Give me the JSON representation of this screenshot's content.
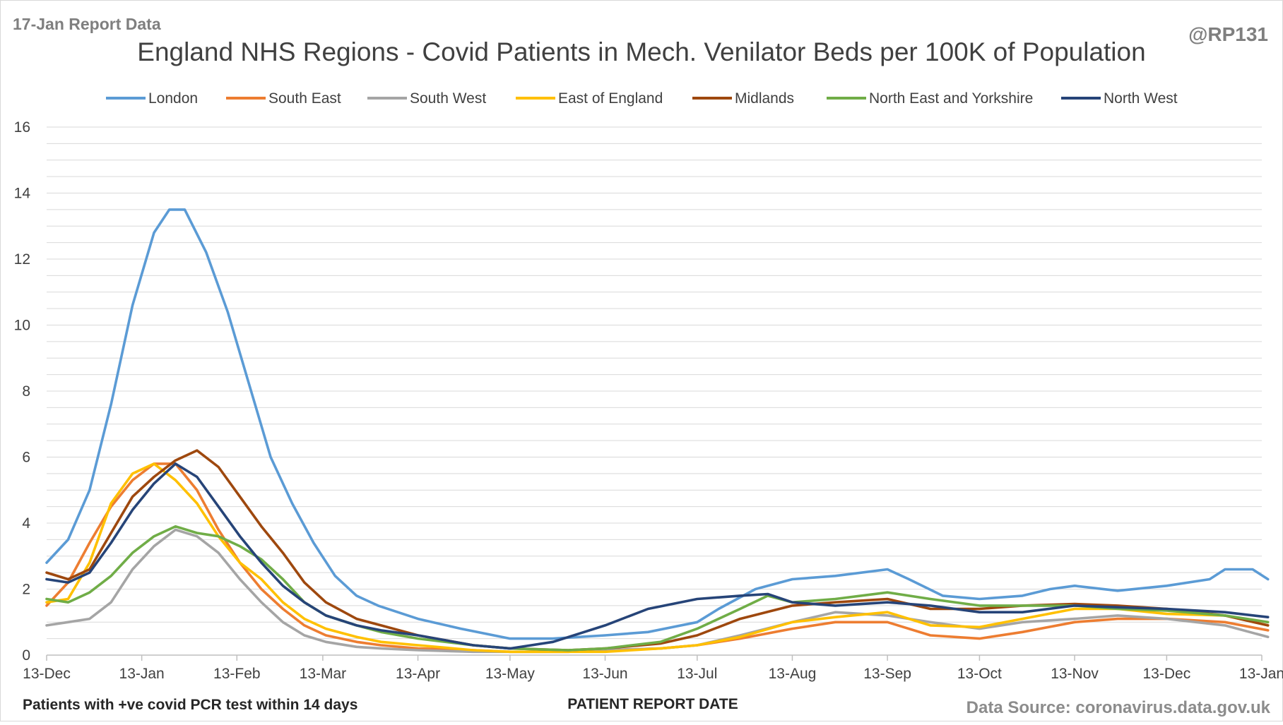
{
  "header": {
    "report_label": "17-Jan Report Data",
    "handle": "@RP131"
  },
  "footer": {
    "note": "Patients with +ve covid PCR test within 14 days",
    "source": "Data Source: coronavirus.data.gov.uk"
  },
  "colors": {
    "London": "#5b9bd5",
    "South East": "#ed7d31",
    "South West": "#a5a5a5",
    "East of England": "#ffc000",
    "Midlands": "#9e480e",
    "North East and Yorkshire": "#70ad47",
    "North West": "#264478"
  },
  "chart_data": {
    "type": "line",
    "title": "England NHS Regions - Covid Patients in Mech. Venilator Beds per 100K of Population",
    "xlabel": "PATIENT REPORT DATE",
    "ylabel": "",
    "ylim": [
      0,
      16
    ],
    "yticks": [
      0,
      2,
      4,
      6,
      8,
      10,
      12,
      14,
      16
    ],
    "x_tick_labels": [
      "13-Dec",
      "13-Jan",
      "13-Feb",
      "13-Mar",
      "13-Apr",
      "13-May",
      "13-Jun",
      "13-Jul",
      "13-Aug",
      "13-Sep",
      "13-Oct",
      "13-Nov",
      "13-Dec",
      "13-Jan"
    ],
    "x_ticks": [
      "2020-12-13",
      "2021-01-13",
      "2021-02-13",
      "2021-03-13",
      "2021-04-13",
      "2021-05-13",
      "2021-06-13",
      "2021-07-13",
      "2021-08-13",
      "2021-09-13",
      "2021-10-13",
      "2021-11-13",
      "2021-12-13",
      "2022-01-13"
    ],
    "xlim": [
      "2020-12-13",
      "2022-01-13"
    ],
    "grid": true,
    "legend_position": "top",
    "series": [
      {
        "name": "London",
        "x": [
          "2020-12-13",
          "2020-12-20",
          "2020-12-27",
          "2021-01-03",
          "2021-01-10",
          "2021-01-17",
          "2021-01-22",
          "2021-01-27",
          "2021-02-03",
          "2021-02-10",
          "2021-02-17",
          "2021-02-24",
          "2021-03-03",
          "2021-03-10",
          "2021-03-17",
          "2021-03-24",
          "2021-03-31",
          "2021-04-13",
          "2021-04-27",
          "2021-05-13",
          "2021-05-27",
          "2021-06-13",
          "2021-06-27",
          "2021-07-13",
          "2021-07-20",
          "2021-08-01",
          "2021-08-13",
          "2021-08-27",
          "2021-09-13",
          "2021-09-20",
          "2021-10-01",
          "2021-10-13",
          "2021-10-27",
          "2021-11-05",
          "2021-11-13",
          "2021-11-27",
          "2021-12-13",
          "2021-12-27",
          "2022-01-01",
          "2022-01-10",
          "2022-01-15"
        ],
        "values": [
          2.8,
          3.5,
          5.0,
          7.6,
          10.6,
          12.8,
          13.5,
          13.5,
          12.2,
          10.4,
          8.2,
          6.0,
          4.6,
          3.4,
          2.4,
          1.8,
          1.5,
          1.1,
          0.8,
          0.5,
          0.5,
          0.6,
          0.7,
          1.0,
          1.4,
          2.0,
          2.3,
          2.4,
          2.6,
          2.3,
          1.8,
          1.7,
          1.8,
          2.0,
          2.1,
          1.95,
          2.1,
          2.3,
          2.6,
          2.6,
          2.3
        ]
      },
      {
        "name": "South East",
        "x": [
          "2020-12-13",
          "2020-12-20",
          "2020-12-27",
          "2021-01-03",
          "2021-01-10",
          "2021-01-17",
          "2021-01-24",
          "2021-01-31",
          "2021-02-07",
          "2021-02-14",
          "2021-02-21",
          "2021-02-28",
          "2021-03-07",
          "2021-03-14",
          "2021-03-24",
          "2021-04-01",
          "2021-04-13",
          "2021-05-01",
          "2021-05-13",
          "2021-06-01",
          "2021-06-13",
          "2021-07-01",
          "2021-07-13",
          "2021-07-27",
          "2021-08-13",
          "2021-08-27",
          "2021-09-13",
          "2021-09-27",
          "2021-10-13",
          "2021-10-27",
          "2021-11-13",
          "2021-11-27",
          "2021-12-13",
          "2022-01-01",
          "2022-01-15"
        ],
        "values": [
          1.5,
          2.2,
          3.4,
          4.5,
          5.3,
          5.8,
          5.8,
          5.0,
          3.8,
          2.8,
          2.0,
          1.4,
          0.9,
          0.6,
          0.4,
          0.3,
          0.2,
          0.15,
          0.1,
          0.1,
          0.15,
          0.2,
          0.3,
          0.5,
          0.8,
          1.0,
          1.0,
          0.6,
          0.5,
          0.7,
          1.0,
          1.1,
          1.1,
          1.0,
          0.75
        ]
      },
      {
        "name": "South West",
        "x": [
          "2020-12-13",
          "2020-12-20",
          "2020-12-27",
          "2021-01-03",
          "2021-01-10",
          "2021-01-17",
          "2021-01-24",
          "2021-01-31",
          "2021-02-07",
          "2021-02-14",
          "2021-02-21",
          "2021-02-28",
          "2021-03-07",
          "2021-03-14",
          "2021-03-24",
          "2021-04-01",
          "2021-04-13",
          "2021-05-01",
          "2021-05-13",
          "2021-06-01",
          "2021-06-13",
          "2021-07-01",
          "2021-07-13",
          "2021-07-27",
          "2021-08-13",
          "2021-08-27",
          "2021-09-13",
          "2021-09-27",
          "2021-10-13",
          "2021-10-27",
          "2021-11-13",
          "2021-11-27",
          "2021-12-13",
          "2022-01-01",
          "2022-01-15"
        ],
        "values": [
          0.9,
          1.0,
          1.1,
          1.6,
          2.6,
          3.3,
          3.8,
          3.6,
          3.1,
          2.3,
          1.6,
          1.0,
          0.6,
          0.4,
          0.25,
          0.2,
          0.15,
          0.1,
          0.1,
          0.1,
          0.15,
          0.2,
          0.3,
          0.6,
          1.0,
          1.3,
          1.2,
          1.0,
          0.8,
          1.0,
          1.1,
          1.2,
          1.1,
          0.9,
          0.55
        ]
      },
      {
        "name": "East of England",
        "x": [
          "2020-12-13",
          "2020-12-20",
          "2020-12-27",
          "2021-01-03",
          "2021-01-10",
          "2021-01-17",
          "2021-01-24",
          "2021-01-31",
          "2021-02-07",
          "2021-02-14",
          "2021-02-21",
          "2021-02-28",
          "2021-03-07",
          "2021-03-14",
          "2021-03-24",
          "2021-04-01",
          "2021-04-13",
          "2021-05-01",
          "2021-05-13",
          "2021-06-01",
          "2021-06-13",
          "2021-07-01",
          "2021-07-13",
          "2021-07-27",
          "2021-08-13",
          "2021-08-27",
          "2021-09-13",
          "2021-09-27",
          "2021-10-13",
          "2021-10-27",
          "2021-11-13",
          "2021-11-27",
          "2021-12-13",
          "2022-01-01",
          "2022-01-15"
        ],
        "values": [
          1.6,
          1.7,
          2.8,
          4.6,
          5.5,
          5.8,
          5.3,
          4.6,
          3.6,
          2.8,
          2.3,
          1.6,
          1.1,
          0.8,
          0.55,
          0.4,
          0.3,
          0.15,
          0.1,
          0.1,
          0.1,
          0.2,
          0.3,
          0.55,
          1.0,
          1.15,
          1.3,
          0.9,
          0.85,
          1.1,
          1.4,
          1.4,
          1.25,
          1.2,
          0.9
        ]
      },
      {
        "name": "Midlands",
        "x": [
          "2020-12-13",
          "2020-12-20",
          "2020-12-27",
          "2021-01-03",
          "2021-01-10",
          "2021-01-17",
          "2021-01-24",
          "2021-01-31",
          "2021-02-07",
          "2021-02-14",
          "2021-02-21",
          "2021-02-28",
          "2021-03-07",
          "2021-03-14",
          "2021-03-24",
          "2021-04-01",
          "2021-04-13",
          "2021-05-01",
          "2021-05-13",
          "2021-06-01",
          "2021-06-13",
          "2021-07-01",
          "2021-07-13",
          "2021-07-27",
          "2021-08-13",
          "2021-08-27",
          "2021-09-13",
          "2021-09-27",
          "2021-10-13",
          "2021-10-27",
          "2021-11-13",
          "2021-11-27",
          "2021-12-13",
          "2022-01-01",
          "2022-01-15"
        ],
        "values": [
          2.5,
          2.3,
          2.6,
          3.7,
          4.8,
          5.4,
          5.9,
          6.2,
          5.7,
          4.8,
          3.9,
          3.1,
          2.2,
          1.6,
          1.1,
          0.9,
          0.6,
          0.3,
          0.2,
          0.15,
          0.2,
          0.35,
          0.6,
          1.1,
          1.5,
          1.6,
          1.7,
          1.4,
          1.4,
          1.5,
          1.55,
          1.5,
          1.4,
          1.2,
          0.9
        ]
      },
      {
        "name": "North East and Yorkshire",
        "x": [
          "2020-12-13",
          "2020-12-20",
          "2020-12-27",
          "2021-01-03",
          "2021-01-10",
          "2021-01-17",
          "2021-01-24",
          "2021-01-31",
          "2021-02-07",
          "2021-02-14",
          "2021-02-21",
          "2021-02-28",
          "2021-03-07",
          "2021-03-14",
          "2021-03-24",
          "2021-04-01",
          "2021-04-13",
          "2021-05-01",
          "2021-05-13",
          "2021-06-01",
          "2021-06-13",
          "2021-07-01",
          "2021-07-13",
          "2021-07-27",
          "2021-08-05",
          "2021-08-13",
          "2021-08-27",
          "2021-09-13",
          "2021-09-27",
          "2021-10-13",
          "2021-10-27",
          "2021-11-13",
          "2021-11-27",
          "2021-12-13",
          "2022-01-01",
          "2022-01-15"
        ],
        "values": [
          1.7,
          1.6,
          1.9,
          2.4,
          3.1,
          3.6,
          3.9,
          3.7,
          3.6,
          3.3,
          2.9,
          2.3,
          1.6,
          1.2,
          0.9,
          0.7,
          0.5,
          0.3,
          0.2,
          0.15,
          0.2,
          0.4,
          0.8,
          1.4,
          1.8,
          1.6,
          1.7,
          1.9,
          1.7,
          1.5,
          1.5,
          1.5,
          1.4,
          1.35,
          1.2,
          1.0
        ]
      },
      {
        "name": "North West",
        "x": [
          "2020-12-13",
          "2020-12-20",
          "2020-12-27",
          "2021-01-03",
          "2021-01-10",
          "2021-01-17",
          "2021-01-24",
          "2021-01-31",
          "2021-02-07",
          "2021-02-14",
          "2021-02-21",
          "2021-02-28",
          "2021-03-07",
          "2021-03-14",
          "2021-03-24",
          "2021-04-01",
          "2021-04-13",
          "2021-05-01",
          "2021-05-13",
          "2021-05-27",
          "2021-06-13",
          "2021-06-27",
          "2021-07-13",
          "2021-07-27",
          "2021-08-05",
          "2021-08-13",
          "2021-08-27",
          "2021-09-13",
          "2021-09-27",
          "2021-10-13",
          "2021-10-27",
          "2021-11-13",
          "2021-11-27",
          "2021-12-13",
          "2022-01-01",
          "2022-01-15"
        ],
        "values": [
          2.3,
          2.2,
          2.5,
          3.4,
          4.4,
          5.2,
          5.8,
          5.4,
          4.5,
          3.6,
          2.8,
          2.1,
          1.6,
          1.2,
          0.9,
          0.75,
          0.6,
          0.3,
          0.2,
          0.4,
          0.9,
          1.4,
          1.7,
          1.8,
          1.85,
          1.6,
          1.5,
          1.6,
          1.5,
          1.3,
          1.3,
          1.5,
          1.45,
          1.4,
          1.3,
          1.15
        ]
      }
    ]
  }
}
